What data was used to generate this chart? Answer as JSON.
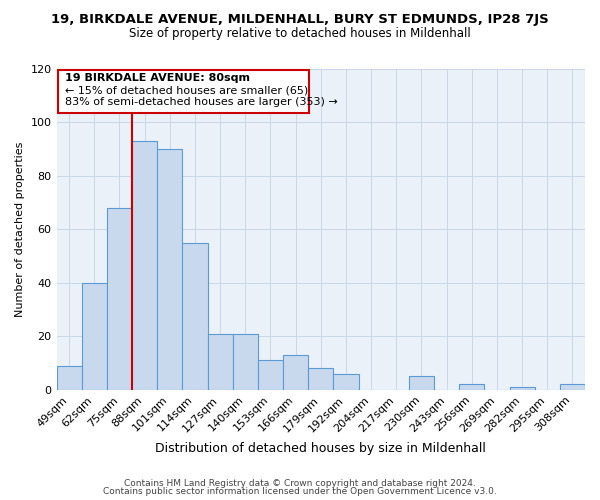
{
  "title_line1": "19, BIRKDALE AVENUE, MILDENHALL, BURY ST EDMUNDS, IP28 7JS",
  "title_line2": "Size of property relative to detached houses in Mildenhall",
  "xlabel": "Distribution of detached houses by size in Mildenhall",
  "ylabel": "Number of detached properties",
  "categories": [
    "49sqm",
    "62sqm",
    "75sqm",
    "88sqm",
    "101sqm",
    "114sqm",
    "127sqm",
    "140sqm",
    "153sqm",
    "166sqm",
    "179sqm",
    "192sqm",
    "204sqm",
    "217sqm",
    "230sqm",
    "243sqm",
    "256sqm",
    "269sqm",
    "282sqm",
    "295sqm",
    "308sqm"
  ],
  "values": [
    9,
    40,
    68,
    93,
    90,
    55,
    21,
    21,
    11,
    13,
    8,
    6,
    0,
    0,
    5,
    0,
    2,
    0,
    1,
    0,
    2
  ],
  "bar_color": "#c8d9ee",
  "bar_edge_color": "#5b9bd5",
  "vline_color": "#cc0000",
  "annotation_box_edge": "#cc0000",
  "annotation_line1": "19 BIRKDALE AVENUE: 80sqm",
  "annotation_line2": "← 15% of detached houses are smaller (65)",
  "annotation_line3": "83% of semi-detached houses are larger (353) →",
  "ylim": [
    0,
    120
  ],
  "footer1": "Contains HM Land Registry data © Crown copyright and database right 2024.",
  "footer2": "Contains public sector information licensed under the Open Government Licence v3.0.",
  "bg_color": "#eaf1f8"
}
